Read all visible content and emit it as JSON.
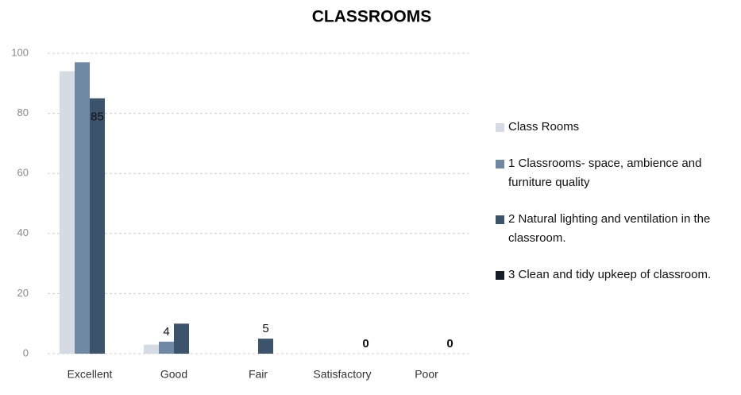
{
  "chart_data": {
    "type": "bar",
    "title": "CLASSROOMS",
    "categories": [
      "Excellent",
      "Good",
      "Fair",
      "Satisfactory",
      "Poor"
    ],
    "series": [
      {
        "name": "Class Rooms",
        "color": "#d4dbe4",
        "values": [
          94,
          3,
          0,
          0,
          0
        ]
      },
      {
        "name": "1 Classrooms- space, ambience and furniture quality",
        "color": "#6f89a4",
        "values": [
          97,
          4,
          0,
          0,
          0
        ]
      },
      {
        "name": "2 Natural lighting and ventilation in the classroom.",
        "color": "#3b536b",
        "values": [
          85,
          10,
          5,
          0,
          0
        ]
      },
      {
        "name": "3 Clean and tidy upkeep of classroom.",
        "color": "#151d2b",
        "values": [
          null,
          null,
          null,
          null,
          null
        ]
      }
    ],
    "ylim": [
      0,
      100
    ],
    "yticks": [
      0,
      20,
      40,
      60,
      80,
      100
    ],
    "grid": true,
    "legend": "right"
  }
}
